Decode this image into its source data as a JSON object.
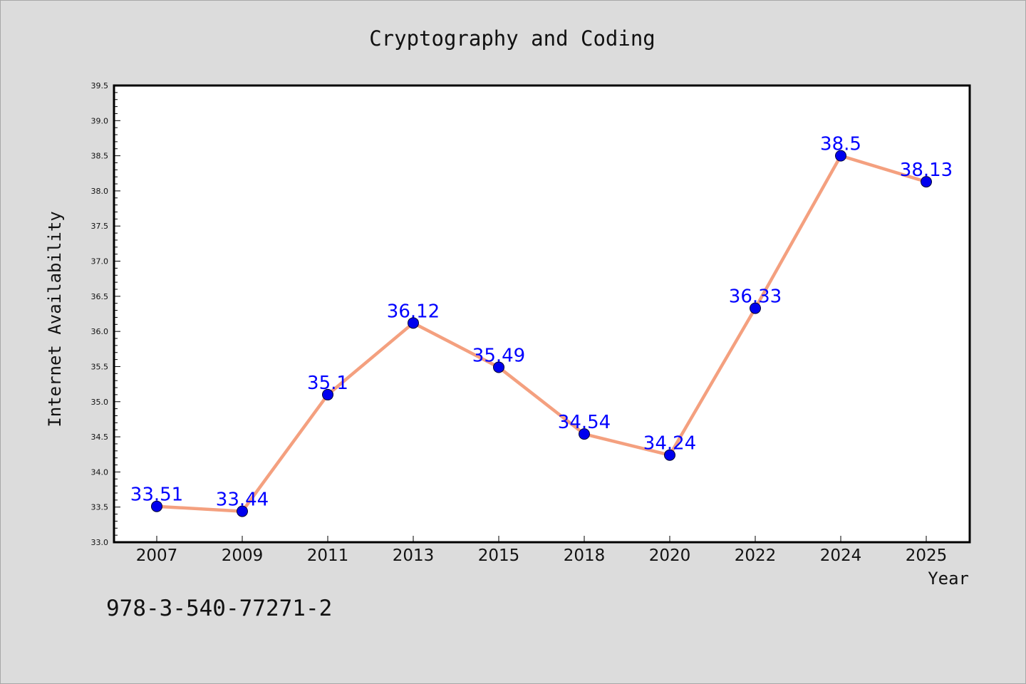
{
  "chart_data": {
    "type": "line",
    "title": "Cryptography and Coding",
    "xlabel": "Year",
    "ylabel": "Internet Availability",
    "categories": [
      "2007",
      "2009",
      "2011",
      "2013",
      "2015",
      "2018",
      "2020",
      "2022",
      "2024",
      "2025"
    ],
    "series": [
      {
        "values": [
          33.51,
          33.44,
          35.1,
          36.12,
          35.49,
          34.54,
          34.24,
          36.33,
          38.5,
          38.13
        ],
        "data_labels": [
          "33.51",
          "33.44",
          "35.1",
          "36.12",
          "35.49",
          "34.54",
          "34.24",
          "36.33",
          "38.5",
          "38.13"
        ]
      }
    ],
    "ylim": [
      33.0,
      39.5
    ],
    "yticks": [
      "33.0",
      "33.5",
      "34.0",
      "34.5",
      "35.0",
      "35.5",
      "36.0",
      "36.5",
      "37.0",
      "37.5",
      "38.0",
      "38.5",
      "39.0",
      "39.5"
    ],
    "grid": false,
    "legend": "none",
    "colors": {
      "line": "#f4a07f",
      "marker": "#0000ee",
      "label": "#0000ff",
      "plot_background": "#ffffff",
      "figure_background": "#dcdcdc"
    }
  },
  "footer": {
    "isbn": "978-3-540-77271-2"
  }
}
